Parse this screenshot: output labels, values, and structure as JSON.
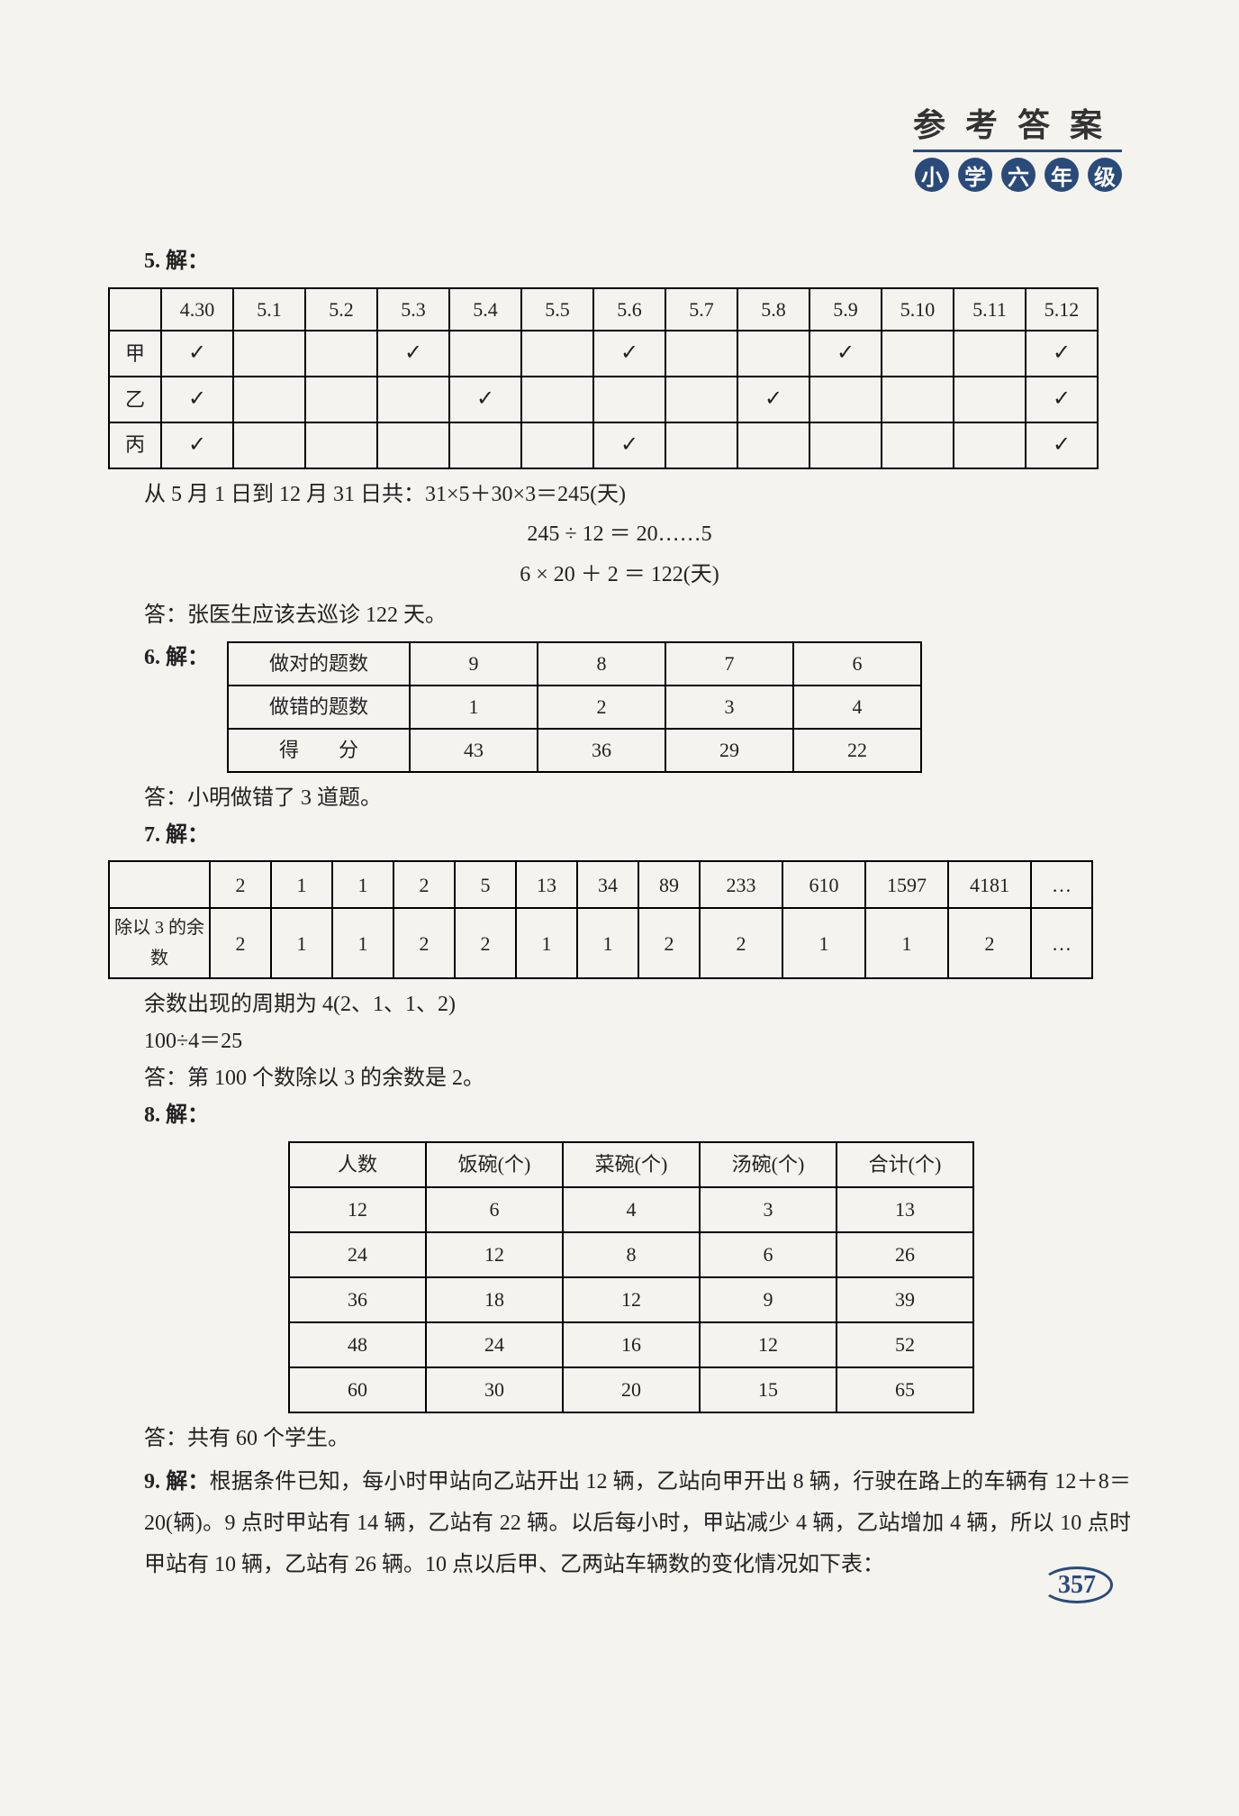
{
  "header": {
    "title": "参考答案",
    "grade_circles": [
      "小",
      "学",
      "六",
      "年",
      "级"
    ]
  },
  "q5": {
    "label": "5. 解：",
    "dates": [
      "4.30",
      "5.1",
      "5.2",
      "5.3",
      "5.4",
      "5.5",
      "5.6",
      "5.7",
      "5.8",
      "5.9",
      "5.10",
      "5.11",
      "5.12"
    ],
    "rows": [
      {
        "name": "甲",
        "marks": [
          1,
          0,
          0,
          1,
          0,
          0,
          1,
          0,
          0,
          1,
          0,
          0,
          1
        ]
      },
      {
        "name": "乙",
        "marks": [
          1,
          0,
          0,
          0,
          1,
          0,
          0,
          0,
          1,
          0,
          0,
          0,
          1
        ]
      },
      {
        "name": "丙",
        "marks": [
          1,
          0,
          0,
          0,
          0,
          0,
          1,
          0,
          0,
          0,
          0,
          0,
          1
        ]
      }
    ],
    "line1": "从 5 月 1 日到 12 月 31 日共：31×5＋30×3＝245(天)",
    "calc1": "245 ÷ 12 ＝ 20……5",
    "calc2": "6 × 20 ＋ 2 ＝ 122(天)",
    "answer": "答：张医生应该去巡诊 122 天。"
  },
  "q6": {
    "label": "6. 解：",
    "rows": [
      {
        "hdr": "做对的题数",
        "vals": [
          "9",
          "8",
          "7",
          "6"
        ]
      },
      {
        "hdr": "做错的题数",
        "vals": [
          "1",
          "2",
          "3",
          "4"
        ]
      },
      {
        "hdr": "得　　分",
        "vals": [
          "43",
          "36",
          "29",
          "22"
        ]
      }
    ],
    "answer": "答：小明做错了 3 道题。"
  },
  "q7": {
    "label": "7. 解：",
    "toprow": [
      "2",
      "1",
      "1",
      "2",
      "5",
      "13",
      "34",
      "89",
      "233",
      "610",
      "1597",
      "4181",
      "…"
    ],
    "botlabel": "除以 3 的余数",
    "botrow": [
      "2",
      "1",
      "1",
      "2",
      "2",
      "1",
      "1",
      "2",
      "2",
      "1",
      "1",
      "2",
      "…"
    ],
    "line1": "余数出现的周期为 4(2、1、1、2)",
    "line2": "100÷4＝25",
    "answer": "答：第 100 个数除以 3 的余数是 2。"
  },
  "q8": {
    "label": "8. 解：",
    "headers": [
      "人数",
      "饭碗(个)",
      "菜碗(个)",
      "汤碗(个)",
      "合计(个)"
    ],
    "rows": [
      [
        "12",
        "6",
        "4",
        "3",
        "13"
      ],
      [
        "24",
        "12",
        "8",
        "6",
        "26"
      ],
      [
        "36",
        "18",
        "12",
        "9",
        "39"
      ],
      [
        "48",
        "24",
        "16",
        "12",
        "52"
      ],
      [
        "60",
        "30",
        "20",
        "15",
        "65"
      ]
    ],
    "answer": "答：共有 60 个学生。"
  },
  "q9": {
    "label": "9. 解：",
    "text": "根据条件已知，每小时甲站向乙站开出 12 辆，乙站向甲开出 8 辆，行驶在路上的车辆有 12＋8＝20(辆)。9 点时甲站有 14 辆，乙站有 22 辆。以后每小时，甲站减少 4 辆，乙站增加 4 辆，所以 10 点时甲站有 10 辆，乙站有 26 辆。10 点以后甲、乙两站车辆数的变化情况如下表："
  },
  "pagenum": "357",
  "checkmark": "✓"
}
